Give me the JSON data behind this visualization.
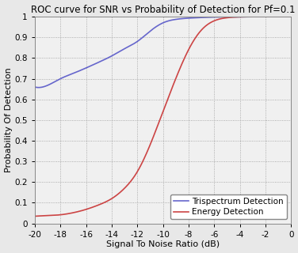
{
  "title": "ROC curve for SNR vs Probability of Detection for Pf=0.1",
  "xlabel": "Signal To Noise Ratio (dB)",
  "ylabel": "Probability Of Detection",
  "xlim": [
    -20,
    0
  ],
  "ylim": [
    0,
    1
  ],
  "xticks": [
    -20,
    -18,
    -16,
    -14,
    -12,
    -10,
    -8,
    -6,
    -4,
    -2,
    0
  ],
  "yticks": [
    0,
    0.1,
    0.2,
    0.3,
    0.4,
    0.5,
    0.6,
    0.7,
    0.8,
    0.9,
    1.0
  ],
  "trispectrum_color": "#6666CC",
  "energy_color": "#CC4444",
  "legend_labels": [
    "Trispectrum Detection",
    "Energy Detection"
  ],
  "bg_color": "#e8e8e8",
  "plot_bg_color": "#f0f0f0",
  "grid_color": "#999999",
  "title_fontsize": 8.5,
  "label_fontsize": 8,
  "tick_fontsize": 7.5,
  "legend_fontsize": 7.5,
  "tri_snr": [
    -20,
    -19,
    -18,
    -17,
    -16,
    -15,
    -14,
    -13,
    -12,
    -11,
    -10,
    -9,
    -8,
    -7,
    -6,
    -5,
    -4,
    -3,
    -2,
    -1,
    0
  ],
  "tri_pd": [
    0.66,
    0.668,
    0.7,
    0.726,
    0.752,
    0.78,
    0.81,
    0.845,
    0.88,
    0.93,
    0.97,
    0.987,
    0.993,
    0.996,
    0.998,
    0.999,
    0.999,
    1.0,
    1.0,
    1.0,
    1.0
  ],
  "en_snr": [
    -20,
    -19,
    -18,
    -17,
    -16,
    -15,
    -14,
    -13,
    -12,
    -11,
    -10,
    -9,
    -8,
    -7,
    -6,
    -5,
    -4,
    -3,
    -2,
    -1,
    0
  ],
  "en_pd": [
    0.035,
    0.038,
    0.042,
    0.052,
    0.068,
    0.09,
    0.12,
    0.17,
    0.25,
    0.38,
    0.54,
    0.7,
    0.84,
    0.935,
    0.98,
    0.995,
    0.999,
    1.0,
    1.0,
    1.0,
    1.0
  ]
}
